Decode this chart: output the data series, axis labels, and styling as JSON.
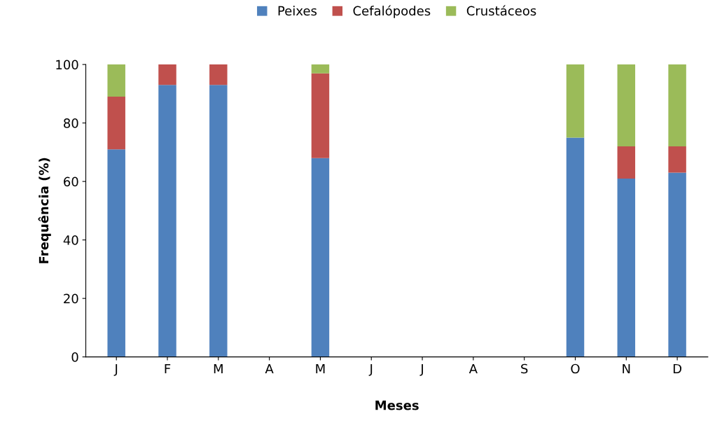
{
  "chart_data": {
    "type": "bar",
    "stacked": true,
    "xlabel": "Meses",
    "ylabel": "Frequência (%)",
    "categories": [
      "J",
      "F",
      "M",
      "A",
      "M",
      "J",
      "J",
      "A",
      "S",
      "O",
      "N",
      "D"
    ],
    "series": [
      {
        "name": "Peixes",
        "color": "#4f81bd",
        "values": [
          71,
          93,
          93,
          0,
          68,
          0,
          0,
          0,
          0,
          75,
          61,
          63
        ]
      },
      {
        "name": "Cefalópodes",
        "color": "#c0504d",
        "values": [
          18,
          7,
          7,
          0,
          29,
          0,
          0,
          0,
          0,
          0,
          11,
          9
        ]
      },
      {
        "name": "Crustáceos",
        "color": "#9bbb59",
        "values": [
          11,
          0,
          0,
          0,
          3,
          0,
          0,
          0,
          0,
          25,
          28,
          28
        ]
      }
    ],
    "ylim": [
      0,
      100
    ],
    "yticks": [
      0,
      20,
      40,
      60,
      80,
      100
    ],
    "grid": false,
    "legend": "top"
  }
}
